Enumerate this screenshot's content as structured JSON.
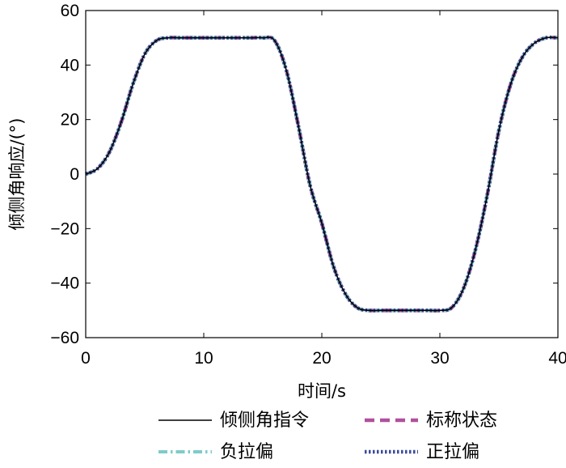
{
  "chart_data": {
    "type": "line",
    "xlabel": "时间/s",
    "ylabel": "倾侧角响应/(°)",
    "xlim": [
      0,
      40
    ],
    "ylim": [
      -60,
      60
    ],
    "xticks": [
      "0",
      "10",
      "20",
      "30",
      "40"
    ],
    "yticks": [
      "60",
      "40",
      "20",
      "0",
      "−20",
      "−40",
      "−60"
    ],
    "grid": false,
    "legend_position": "bottom",
    "series": [
      {
        "name": "倾侧角指令",
        "color": "#000000",
        "style": "solid",
        "x": [
          0,
          1,
          2,
          3,
          4,
          5,
          6,
          7,
          8,
          9,
          10,
          11,
          12,
          13,
          14,
          15,
          16,
          17,
          18,
          19,
          20,
          21,
          22,
          23,
          24,
          25,
          26,
          27,
          28,
          29,
          30,
          31,
          32,
          33,
          34,
          35,
          36,
          37,
          38,
          39,
          40
        ],
        "y": [
          0,
          2,
          8,
          19,
          33,
          44,
          49,
          50,
          50,
          50,
          50,
          50,
          50,
          50,
          50,
          50,
          49,
          38,
          18,
          -4,
          -18,
          -34,
          -44,
          -49,
          -50,
          -50,
          -50,
          -50,
          -50,
          -50,
          -50,
          -49,
          -42,
          -28,
          -8,
          16,
          33,
          43,
          48,
          50,
          50
        ]
      },
      {
        "name": "标称状态",
        "color": "#b0509e",
        "style": "dashed",
        "x": [
          0,
          1,
          2,
          3,
          4,
          5,
          6,
          7,
          8,
          9,
          10,
          11,
          12,
          13,
          14,
          15,
          16,
          17,
          18,
          19,
          20,
          21,
          22,
          23,
          24,
          25,
          26,
          27,
          28,
          29,
          30,
          31,
          32,
          33,
          34,
          35,
          36,
          37,
          38,
          39,
          40
        ],
        "y": [
          0,
          2,
          8,
          19,
          33,
          44,
          49,
          50,
          50,
          50,
          50,
          50,
          50,
          50,
          50,
          50,
          49,
          38,
          18,
          -4,
          -18,
          -34,
          -44,
          -49,
          -50,
          -50,
          -50,
          -50,
          -50,
          -50,
          -50,
          -49,
          -42,
          -28,
          -8,
          16,
          33,
          43,
          48,
          50,
          50
        ]
      },
      {
        "name": "负拉偏",
        "color": "#7fcbc9",
        "style": "dashdot",
        "x": [
          0,
          1,
          2,
          3,
          4,
          5,
          6,
          7,
          8,
          9,
          10,
          11,
          12,
          13,
          14,
          15,
          16,
          17,
          18,
          19,
          20,
          21,
          22,
          23,
          24,
          25,
          26,
          27,
          28,
          29,
          30,
          31,
          32,
          33,
          34,
          35,
          36,
          37,
          38,
          39,
          40
        ],
        "y": [
          0,
          2,
          8,
          19,
          33,
          44,
          49,
          50,
          50,
          50,
          50,
          50,
          50,
          50,
          50,
          50,
          49,
          38,
          18,
          -4,
          -18,
          -34,
          -44,
          -49,
          -50,
          -50,
          -50,
          -50,
          -50,
          -50,
          -50,
          -49,
          -42,
          -28,
          -8,
          16,
          33,
          43,
          48,
          50,
          50
        ]
      },
      {
        "name": "正拉偏",
        "color": "#3a4b9a",
        "style": "dotted",
        "x": [
          0,
          1,
          2,
          3,
          4,
          5,
          6,
          7,
          8,
          9,
          10,
          11,
          12,
          13,
          14,
          15,
          16,
          17,
          18,
          19,
          20,
          21,
          22,
          23,
          24,
          25,
          26,
          27,
          28,
          29,
          30,
          31,
          32,
          33,
          34,
          35,
          36,
          37,
          38,
          39,
          40
        ],
        "y": [
          0,
          2,
          8,
          19,
          33,
          44,
          49,
          50,
          50,
          50,
          50,
          50,
          50,
          50,
          50,
          50,
          49,
          38,
          18,
          -4,
          -18,
          -34,
          -44,
          -49,
          -50,
          -50,
          -50,
          -50,
          -50,
          -50,
          -50,
          -49,
          -42,
          -28,
          -8,
          16,
          33,
          43,
          48,
          50,
          50
        ]
      }
    ]
  }
}
